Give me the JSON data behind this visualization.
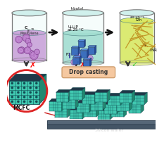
{
  "beaker1_liquid_color": "#c8a0d8",
  "beaker2_liquid_color": "#a0ddd0",
  "beaker3_liquid_color": "#d8e860",
  "beaker1_label": "C₇₀ in\nMesitylene",
  "beaker2_label1": "t-butyl\nalcohol",
  "beaker2_label2": "ULLIP\nat 25 °C",
  "beaker2_fc": "FC",
  "beaker3_label": "Stirring\nat 75 °C,\n72h",
  "beaker3_fnr": "FNR",
  "drop_casting_label": "Drop casting",
  "drop_casting_color": "#f5c8a0",
  "mcfc_label": "MCFC",
  "silicon_label": "Silicon wafer",
  "arrow_color": "#111111",
  "cube_teal_front": "#40c8b0",
  "cube_teal_top": "#70e8d0",
  "cube_teal_right": "#208870",
  "cube_dark_edge": "#104850",
  "cube_dark_face": "#203848",
  "circle_outline": "#dd2222",
  "fullerene_color": "#b878c8",
  "fullerene_edge": "#804090",
  "needle_color": "#c09020",
  "wafer_color": "#445566",
  "wafer_top": "#556677"
}
